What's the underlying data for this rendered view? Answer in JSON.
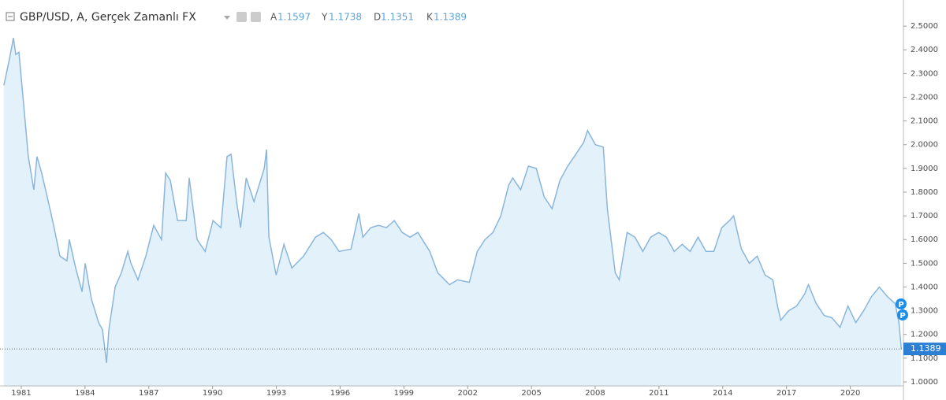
{
  "header": {
    "title": "GBP/USD, A, Gerçek Zamanlı FX",
    "ohlc": [
      {
        "label": "A",
        "value": "1.1597"
      },
      {
        "label": "Y",
        "value": "1.1738"
      },
      {
        "label": "D",
        "value": "1.1351"
      },
      {
        "label": "K",
        "value": "1.1389"
      }
    ]
  },
  "chart_data": {
    "type": "area",
    "x": [
      1980.18,
      1980.44,
      1980.63,
      1980.74,
      1980.89,
      1981.07,
      1981.33,
      1981.59,
      1981.74,
      1981.96,
      1982.22,
      1982.52,
      1982.82,
      1983.15,
      1983.26,
      1983.56,
      1983.86,
      1984.01,
      1984.3,
      1984.64,
      1984.82,
      1985.01,
      1985.12,
      1985.42,
      1985.71,
      1986.01,
      1986.16,
      1986.49,
      1986.86,
      1987.23,
      1987.6,
      1987.79,
      1988.01,
      1988.35,
      1988.76,
      1988.9,
      1989.27,
      1989.65,
      1990.02,
      1990.39,
      1990.68,
      1990.87,
      1991.13,
      1991.32,
      1991.58,
      1991.95,
      1992.43,
      1992.54,
      1992.65,
      1992.99,
      1993.36,
      1993.73,
      1994.28,
      1994.84,
      1995.21,
      1995.58,
      1995.95,
      1996.51,
      1996.88,
      1997.07,
      1997.44,
      1997.81,
      1998.18,
      1998.55,
      1998.92,
      1999.29,
      1999.66,
      2000.22,
      2000.59,
      2001.15,
      2001.52,
      2002.08,
      2002.45,
      2002.82,
      2003.19,
      2003.56,
      2003.93,
      2004.12,
      2004.49,
      2004.86,
      2005.23,
      2005.6,
      2005.97,
      2006.34,
      2006.71,
      2007.09,
      2007.46,
      2007.64,
      2008.01,
      2008.38,
      2008.57,
      2008.94,
      2009.13,
      2009.5,
      2009.87,
      2010.24,
      2010.61,
      2010.98,
      2011.35,
      2011.72,
      2012.09,
      2012.47,
      2012.84,
      2013.21,
      2013.58,
      2013.95,
      2014.32,
      2014.51,
      2014.88,
      2015.25,
      2015.62,
      2015.99,
      2016.36,
      2016.55,
      2016.73,
      2017.1,
      2017.48,
      2017.85,
      2018.03,
      2018.4,
      2018.77,
      2019.14,
      2019.52,
      2019.89,
      2020.26,
      2020.63,
      2021.0,
      2021.37,
      2021.74,
      2022.11,
      2022.29,
      2022.4
    ],
    "values": [
      2.25,
      2.36,
      2.45,
      2.38,
      2.39,
      2.21,
      1.95,
      1.81,
      1.95,
      1.88,
      1.78,
      1.66,
      1.53,
      1.51,
      1.6,
      1.48,
      1.38,
      1.5,
      1.35,
      1.25,
      1.22,
      1.08,
      1.22,
      1.4,
      1.46,
      1.55,
      1.5,
      1.43,
      1.53,
      1.66,
      1.6,
      1.88,
      1.85,
      1.68,
      1.68,
      1.86,
      1.6,
      1.55,
      1.68,
      1.65,
      1.95,
      1.96,
      1.76,
      1.65,
      1.86,
      1.76,
      1.9,
      1.98,
      1.61,
      1.45,
      1.58,
      1.48,
      1.53,
      1.61,
      1.63,
      1.6,
      1.55,
      1.56,
      1.71,
      1.61,
      1.65,
      1.66,
      1.65,
      1.68,
      1.63,
      1.61,
      1.63,
      1.55,
      1.46,
      1.41,
      1.43,
      1.42,
      1.55,
      1.6,
      1.63,
      1.7,
      1.83,
      1.86,
      1.81,
      1.91,
      1.9,
      1.78,
      1.73,
      1.85,
      1.91,
      1.96,
      2.01,
      2.06,
      2.0,
      1.99,
      1.73,
      1.46,
      1.43,
      1.63,
      1.61,
      1.55,
      1.61,
      1.63,
      1.61,
      1.55,
      1.58,
      1.55,
      1.61,
      1.55,
      1.55,
      1.65,
      1.68,
      1.7,
      1.56,
      1.5,
      1.53,
      1.45,
      1.43,
      1.33,
      1.26,
      1.3,
      1.32,
      1.37,
      1.41,
      1.33,
      1.28,
      1.27,
      1.23,
      1.32,
      1.25,
      1.3,
      1.36,
      1.4,
      1.36,
      1.33,
      1.25,
      1.1389
    ],
    "color": "#8ab6dc",
    "fill": "#e3f1fb",
    "xlim": [
      1980.0,
      2022.5
    ],
    "xticks": [
      1981,
      1984,
      1987,
      1990,
      1993,
      1996,
      1999,
      2002,
      2005,
      2008,
      2011,
      2014,
      2017,
      2020
    ],
    "ylim": [
      0.98,
      2.6
    ],
    "yticks": [
      {
        "value": 1.0,
        "label": "1.0000"
      },
      {
        "value": 1.1,
        "label": "1.1000"
      },
      {
        "value": 1.2,
        "label": "1.2000"
      },
      {
        "value": 1.3,
        "label": "1.3000"
      },
      {
        "value": 1.4,
        "label": "1.4000"
      },
      {
        "value": 1.5,
        "label": "1.5000"
      },
      {
        "value": 1.6,
        "label": "1.6000"
      },
      {
        "value": 1.7,
        "label": "1.7000"
      },
      {
        "value": 1.8,
        "label": "1.8000"
      },
      {
        "value": 1.9,
        "label": "1.9000"
      },
      {
        "value": 2.0,
        "label": "2.0000"
      },
      {
        "value": 2.1,
        "label": "2.1000"
      },
      {
        "value": 2.2,
        "label": "2.2000"
      },
      {
        "value": 2.3,
        "label": "2.3000"
      },
      {
        "value": 2.4,
        "label": "2.4000"
      },
      {
        "value": 2.5,
        "label": "2.5000"
      }
    ],
    "last_price": {
      "value": 1.1389,
      "label": "1.1389"
    },
    "annotations": [
      "P",
      "P"
    ],
    "grid": false
  }
}
